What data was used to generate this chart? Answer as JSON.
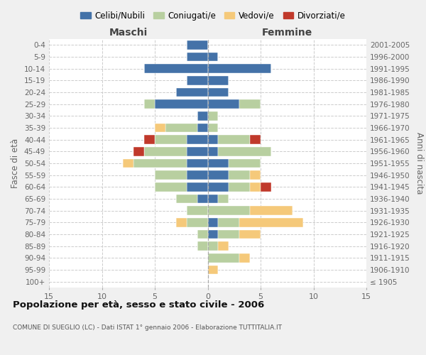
{
  "age_groups": [
    "100+",
    "95-99",
    "90-94",
    "85-89",
    "80-84",
    "75-79",
    "70-74",
    "65-69",
    "60-64",
    "55-59",
    "50-54",
    "45-49",
    "40-44",
    "35-39",
    "30-34",
    "25-29",
    "20-24",
    "15-19",
    "10-14",
    "5-9",
    "0-4"
  ],
  "birth_years": [
    "≤ 1905",
    "1906-1910",
    "1911-1915",
    "1916-1920",
    "1921-1925",
    "1926-1930",
    "1931-1935",
    "1936-1940",
    "1941-1945",
    "1946-1950",
    "1951-1955",
    "1956-1960",
    "1961-1965",
    "1966-1970",
    "1971-1975",
    "1976-1980",
    "1981-1985",
    "1986-1990",
    "1991-1995",
    "1996-2000",
    "2001-2005"
  ],
  "colors": {
    "celibi": "#4472a8",
    "coniugati": "#b8cfa0",
    "vedovi": "#f5c97a",
    "divorziati": "#c0392b"
  },
  "maschi": {
    "celibi": [
      0,
      0,
      0,
      0,
      0,
      0,
      0,
      1,
      2,
      2,
      2,
      2,
      2,
      1,
      1,
      5,
      3,
      2,
      6,
      2,
      2
    ],
    "coniugati": [
      0,
      0,
      0,
      1,
      1,
      2,
      2,
      2,
      3,
      3,
      5,
      4,
      3,
      3,
      0,
      1,
      0,
      0,
      0,
      0,
      0
    ],
    "vedovi": [
      0,
      0,
      0,
      0,
      0,
      1,
      0,
      0,
      0,
      0,
      1,
      0,
      0,
      1,
      0,
      0,
      0,
      0,
      0,
      0,
      0
    ],
    "divorziati": [
      0,
      0,
      0,
      0,
      0,
      0,
      0,
      0,
      0,
      0,
      0,
      1,
      1,
      0,
      0,
      0,
      0,
      0,
      0,
      0,
      0
    ]
  },
  "femmine": {
    "celibi": [
      0,
      0,
      0,
      0,
      1,
      1,
      0,
      1,
      2,
      2,
      2,
      1,
      1,
      0,
      0,
      3,
      2,
      2,
      6,
      1,
      0
    ],
    "coniugati": [
      0,
      0,
      3,
      1,
      2,
      2,
      4,
      1,
      2,
      2,
      3,
      5,
      3,
      1,
      1,
      2,
      0,
      0,
      0,
      0,
      0
    ],
    "vedovi": [
      0,
      1,
      1,
      1,
      2,
      6,
      4,
      0,
      1,
      1,
      0,
      0,
      0,
      0,
      0,
      0,
      0,
      0,
      0,
      0,
      0
    ],
    "divorziati": [
      0,
      0,
      0,
      0,
      0,
      0,
      0,
      0,
      1,
      0,
      0,
      0,
      1,
      0,
      0,
      0,
      0,
      0,
      0,
      0,
      0
    ]
  },
  "title": "Popolazione per età, sesso e stato civile - 2006",
  "subtitle": "COMUNE DI SUEGLIO (LC) - Dati ISTAT 1° gennaio 2006 - Elaborazione TUTTITALIA.IT",
  "ylabel_left": "Fasce di età",
  "ylabel_right": "Anni di nascita",
  "xlabel_left": "Maschi",
  "xlabel_right": "Femmine",
  "xlim": 15,
  "background_color": "#f0f0f0",
  "plot_bg": "#ffffff",
  "legend_labels": [
    "Celibi/Nubili",
    "Coniugati/e",
    "Vedovi/e",
    "Divorziati/e"
  ]
}
